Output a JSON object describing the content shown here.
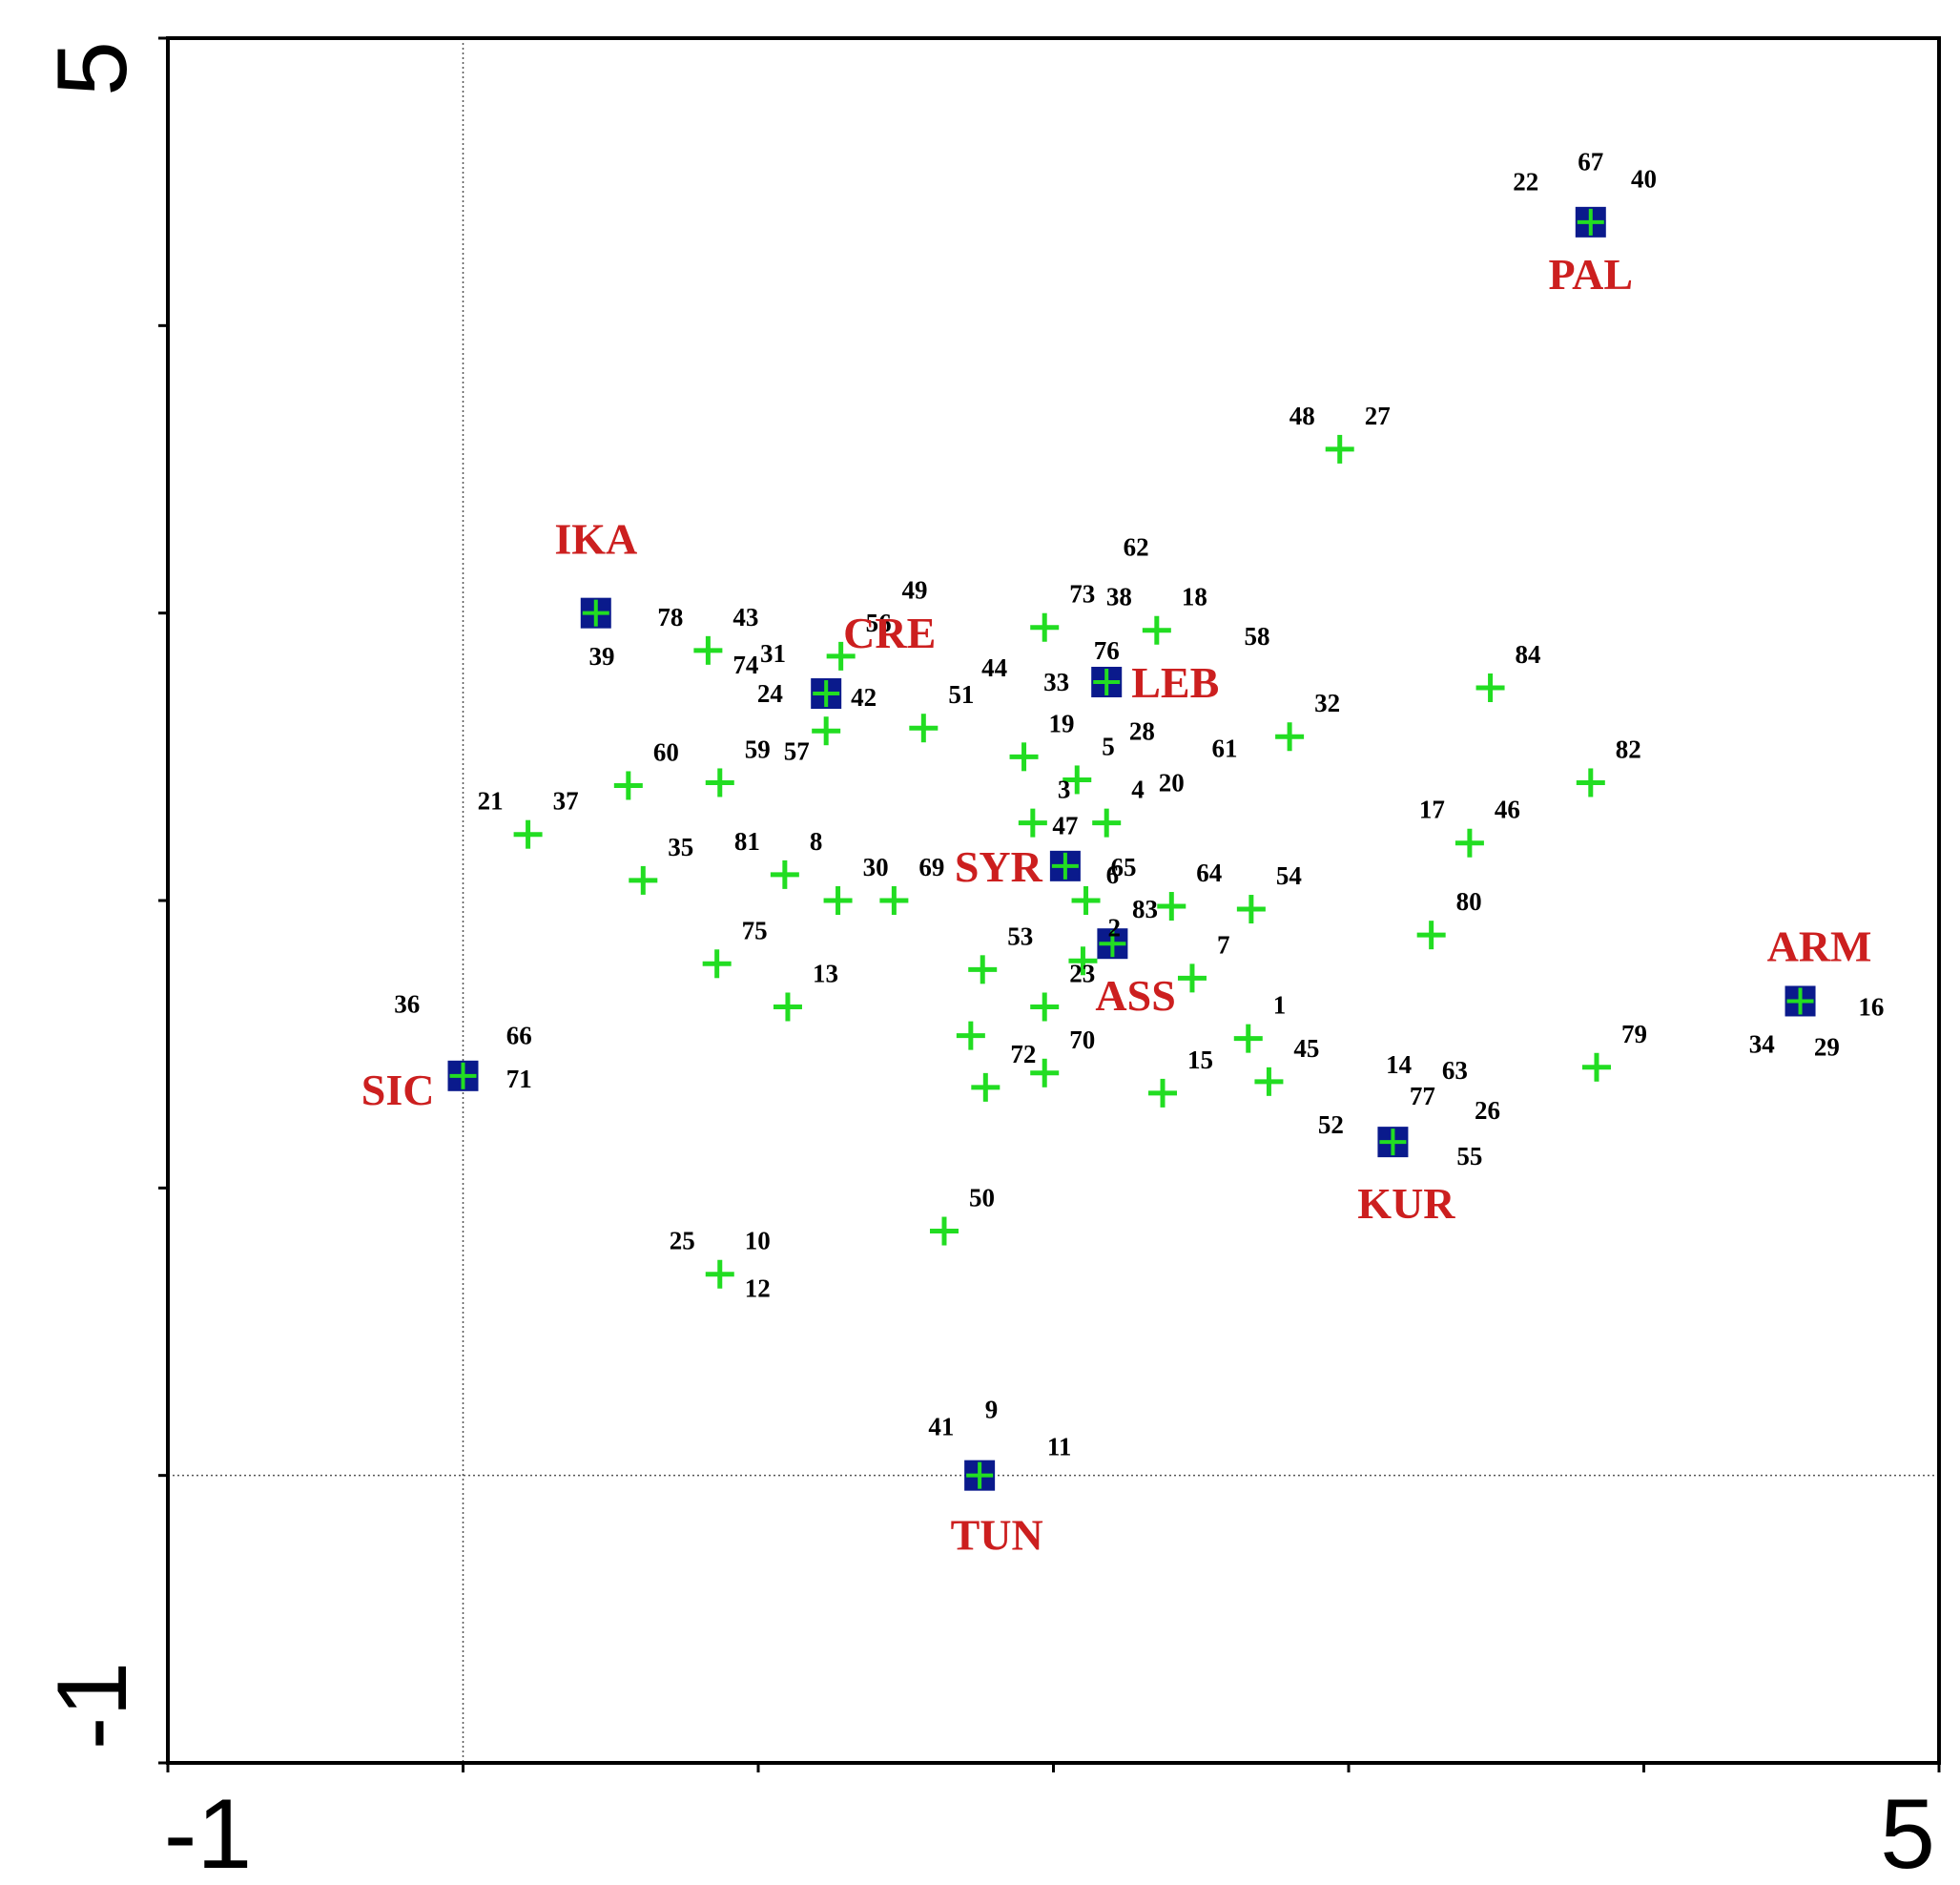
{
  "chart_data": {
    "type": "scatter",
    "title": "",
    "xlabel": "",
    "ylabel": "",
    "xlim": [
      -1,
      5
    ],
    "ylim": [
      -1,
      5
    ],
    "x_tick_labels": [
      "-1",
      "5"
    ],
    "y_tick_labels": [
      "5",
      "-1"
    ],
    "reference_lines": {
      "x": 0,
      "y": 0
    },
    "colors": {
      "point": "#22dd22",
      "centroid_fill": "#0a1a8c",
      "group_label": "#cc1f1f",
      "axis": "#000000"
    },
    "groups": [
      {
        "label": "PAL",
        "x": 3.82,
        "y": 4.36
      },
      {
        "label": "IKA",
        "x": 0.45,
        "y": 3.0
      },
      {
        "label": "CRE",
        "x": 1.23,
        "y": 2.72
      },
      {
        "label": "LEB",
        "x": 2.18,
        "y": 2.76
      },
      {
        "label": "SYR",
        "x": 2.04,
        "y": 2.12
      },
      {
        "label": "ASS",
        "x": 2.2,
        "y": 1.85
      },
      {
        "label": "ARM",
        "x": 4.53,
        "y": 1.65
      },
      {
        "label": "SIC",
        "x": 0.0,
        "y": 1.39
      },
      {
        "label": "KUR",
        "x": 3.15,
        "y": 1.16
      },
      {
        "label": "TUN",
        "x": 1.75,
        "y": 0.0
      }
    ],
    "points": [
      {
        "x": 2.97,
        "y": 3.57,
        "labels": [
          "27",
          "48"
        ]
      },
      {
        "x": 1.97,
        "y": 2.95,
        "labels": [
          "73"
        ]
      },
      {
        "x": 2.35,
        "y": 2.94,
        "labels": [
          "18",
          "38"
        ]
      },
      {
        "x": 0.83,
        "y": 2.87,
        "labels": [
          "43",
          "78",
          "74"
        ]
      },
      {
        "x": 1.28,
        "y": 2.85,
        "labels": [
          "56"
        ]
      },
      {
        "x": 3.48,
        "y": 2.74,
        "labels": [
          "84"
        ]
      },
      {
        "x": 1.23,
        "y": 2.59,
        "labels": [
          "42"
        ]
      },
      {
        "x": 1.56,
        "y": 2.6,
        "labels": [
          "51"
        ]
      },
      {
        "x": 2.8,
        "y": 2.57,
        "labels": [
          "32"
        ]
      },
      {
        "x": 1.9,
        "y": 2.5,
        "labels": [
          "19"
        ]
      },
      {
        "x": 2.08,
        "y": 2.42,
        "labels": [
          "5"
        ]
      },
      {
        "x": 0.56,
        "y": 2.4,
        "labels": [
          "60"
        ]
      },
      {
        "x": 0.87,
        "y": 2.41,
        "labels": [
          "59"
        ]
      },
      {
        "x": 3.82,
        "y": 2.41,
        "labels": [
          "82"
        ]
      },
      {
        "x": 1.93,
        "y": 2.27,
        "labels": [
          "3"
        ]
      },
      {
        "x": 2.18,
        "y": 2.27,
        "labels": [
          "4"
        ]
      },
      {
        "x": 0.22,
        "y": 2.23,
        "labels": [
          "37",
          "21"
        ]
      },
      {
        "x": 3.41,
        "y": 2.2,
        "labels": [
          "46",
          "17"
        ]
      },
      {
        "x": 0.61,
        "y": 2.07,
        "labels": [
          "35"
        ]
      },
      {
        "x": 1.09,
        "y": 2.09,
        "labels": [
          "8",
          "81"
        ]
      },
      {
        "x": 1.27,
        "y": 2.0,
        "labels": [
          "30"
        ]
      },
      {
        "x": 1.46,
        "y": 2.0,
        "labels": [
          "69"
        ]
      },
      {
        "x": 2.11,
        "y": 2.0,
        "labels": [
          "65"
        ]
      },
      {
        "x": 2.4,
        "y": 1.98,
        "labels": [
          "64"
        ]
      },
      {
        "x": 2.67,
        "y": 1.97,
        "labels": [
          "54"
        ]
      },
      {
        "x": 3.28,
        "y": 1.88,
        "labels": [
          "80"
        ]
      },
      {
        "x": 0.86,
        "y": 1.78,
        "labels": [
          "75"
        ]
      },
      {
        "x": 1.76,
        "y": 1.76,
        "labels": [
          "53"
        ]
      },
      {
        "x": 2.1,
        "y": 1.79,
        "labels": [
          "2"
        ]
      },
      {
        "x": 2.47,
        "y": 1.73,
        "labels": [
          "7"
        ]
      },
      {
        "x": 1.1,
        "y": 1.63,
        "labels": [
          "13"
        ]
      },
      {
        "x": 1.97,
        "y": 1.63,
        "labels": [
          "23"
        ]
      },
      {
        "x": 1.72,
        "y": 1.53,
        "labels": []
      },
      {
        "x": 2.66,
        "y": 1.52,
        "labels": [
          "1"
        ]
      },
      {
        "x": 1.97,
        "y": 1.4,
        "labels": [
          "70"
        ]
      },
      {
        "x": 2.73,
        "y": 1.37,
        "labels": [
          "45"
        ]
      },
      {
        "x": 3.84,
        "y": 1.42,
        "labels": [
          "79"
        ]
      },
      {
        "x": 1.77,
        "y": 1.35,
        "labels": [
          "72"
        ]
      },
      {
        "x": 2.37,
        "y": 1.33,
        "labels": [
          "15"
        ]
      },
      {
        "x": 1.63,
        "y": 0.85,
        "labels": [
          "50"
        ]
      },
      {
        "x": 0.87,
        "y": 0.7,
        "labels": [
          "10",
          "25",
          "12"
        ]
      }
    ],
    "free_labels": [
      {
        "text": "67",
        "x": 3.82,
        "y": 4.54
      },
      {
        "text": "22",
        "x": 3.6,
        "y": 4.47
      },
      {
        "text": "40",
        "x": 4.0,
        "y": 4.48
      },
      {
        "text": "62",
        "x": 2.28,
        "y": 3.2
      },
      {
        "text": "49",
        "x": 1.53,
        "y": 3.05
      },
      {
        "text": "39",
        "x": 0.47,
        "y": 2.82
      },
      {
        "text": "31",
        "x": 1.05,
        "y": 2.83
      },
      {
        "text": "44",
        "x": 1.8,
        "y": 2.78
      },
      {
        "text": "76",
        "x": 2.18,
        "y": 2.84
      },
      {
        "text": "33",
        "x": 2.01,
        "y": 2.73
      },
      {
        "text": "58",
        "x": 2.69,
        "y": 2.89
      },
      {
        "text": "24",
        "x": 1.04,
        "y": 2.69
      },
      {
        "text": "28",
        "x": 2.3,
        "y": 2.56
      },
      {
        "text": "61",
        "x": 2.58,
        "y": 2.5
      },
      {
        "text": "57",
        "x": 1.13,
        "y": 2.49
      },
      {
        "text": "20",
        "x": 2.4,
        "y": 2.38
      },
      {
        "text": "47",
        "x": 2.04,
        "y": 2.23
      },
      {
        "text": "6",
        "x": 2.2,
        "y": 2.06
      },
      {
        "text": "83",
        "x": 2.31,
        "y": 1.94
      },
      {
        "text": "36",
        "x": -0.19,
        "y": 1.61
      },
      {
        "text": "66",
        "x": 0.19,
        "y": 1.5
      },
      {
        "text": "71",
        "x": 0.19,
        "y": 1.35
      },
      {
        "text": "14",
        "x": 3.17,
        "y": 1.4
      },
      {
        "text": "63",
        "x": 3.36,
        "y": 1.38
      },
      {
        "text": "77",
        "x": 3.25,
        "y": 1.29
      },
      {
        "text": "26",
        "x": 3.47,
        "y": 1.24
      },
      {
        "text": "52",
        "x": 2.94,
        "y": 1.19
      },
      {
        "text": "55",
        "x": 3.41,
        "y": 1.08
      },
      {
        "text": "16",
        "x": 4.77,
        "y": 1.6
      },
      {
        "text": "34",
        "x": 4.4,
        "y": 1.47
      },
      {
        "text": "29",
        "x": 4.62,
        "y": 1.46
      },
      {
        "text": "41",
        "x": 1.62,
        "y": 0.14
      },
      {
        "text": "9",
        "x": 1.79,
        "y": 0.2
      },
      {
        "text": "11",
        "x": 2.02,
        "y": 0.07
      }
    ]
  }
}
